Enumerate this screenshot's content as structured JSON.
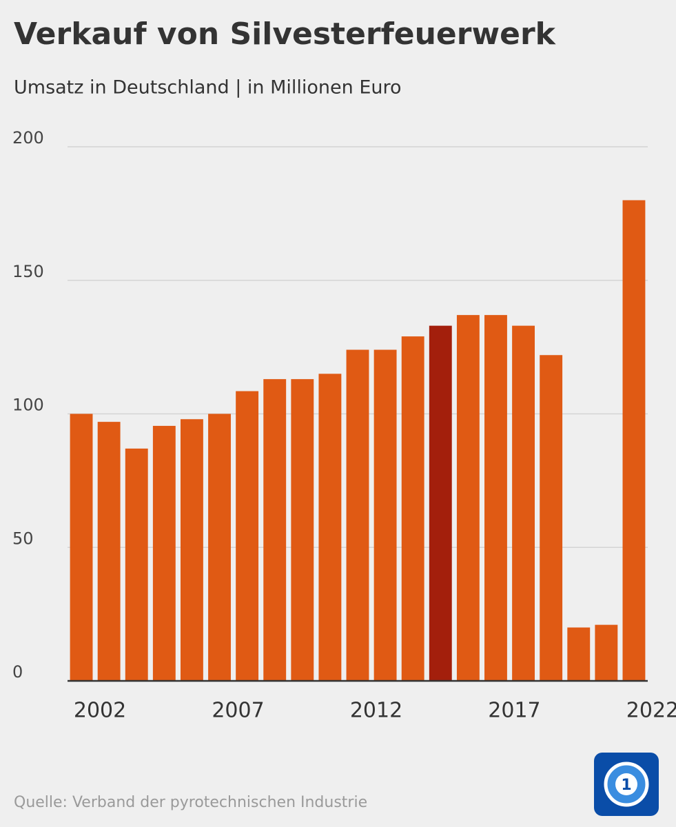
{
  "chart_data": {
    "type": "bar",
    "title": "Verkauf von Silvesterfeuerwerk",
    "subtitle": "Umsatz in Deutschland | in Millionen Euro",
    "source": "Quelle: Verband der pyrotechnischen Industrie",
    "categories": [
      "2002",
      null,
      null,
      null,
      null,
      "2007",
      null,
      null,
      null,
      null,
      "2012",
      null,
      null,
      null,
      null,
      "2017",
      null,
      null,
      null,
      null,
      "2022"
    ],
    "values": [
      100,
      97,
      87,
      95.5,
      98,
      100,
      108.5,
      113,
      113,
      115,
      124,
      124,
      129,
      133,
      137,
      137,
      133,
      122,
      20,
      21,
      180
    ],
    "colors": [
      "#e05a14",
      "#e05a14",
      "#e05a14",
      "#e05a14",
      "#e05a14",
      "#e05a14",
      "#e05a14",
      "#e05a14",
      "#e05a14",
      "#e05a14",
      "#e05a14",
      "#e05a14",
      "#e05a14",
      "#a31f0c",
      "#e05a14",
      "#e05a14",
      "#e05a14",
      "#e05a14",
      "#e05a14",
      "#e05a14",
      "#e05a14"
    ],
    "ylim": [
      0,
      200
    ],
    "yticks": [
      0,
      50,
      100,
      150,
      200
    ],
    "grid": true
  }
}
